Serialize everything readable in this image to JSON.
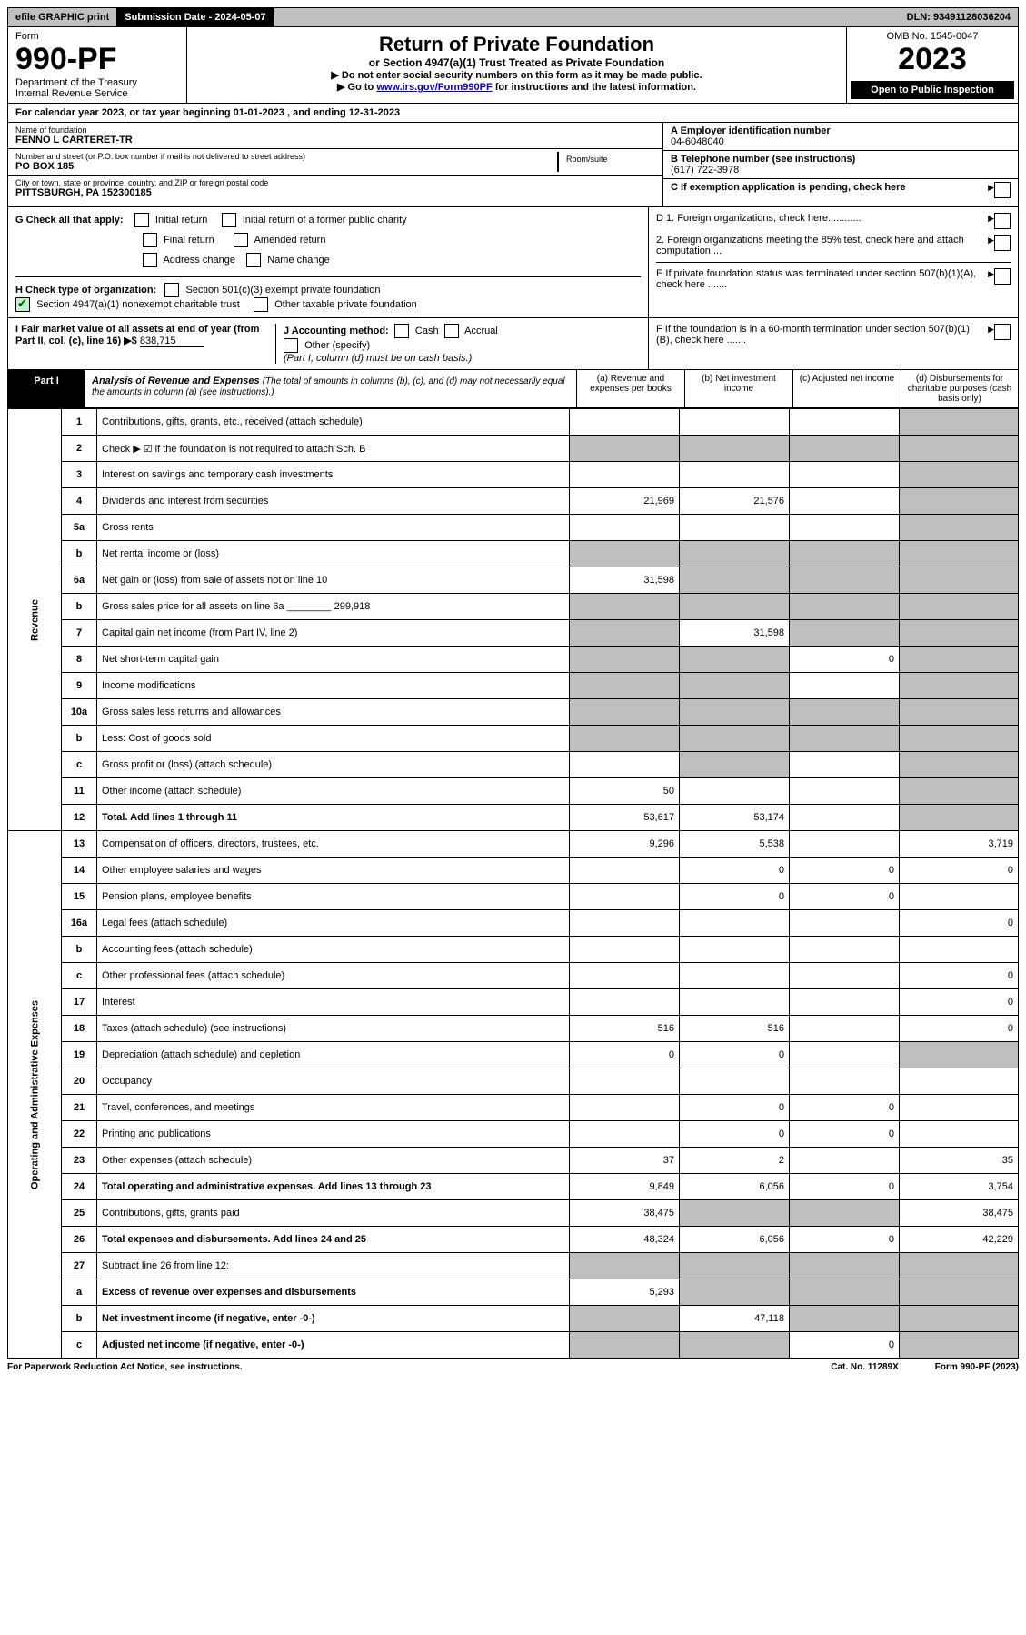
{
  "topbar": {
    "efile": "efile GRAPHIC print",
    "submission": "Submission Date - 2024-05-07",
    "dln": "DLN: 93491128036204"
  },
  "header": {
    "form_word": "Form",
    "form_no": "990-PF",
    "dept": "Department of the Treasury",
    "irs": "Internal Revenue Service",
    "title": "Return of Private Foundation",
    "subtitle": "or Section 4947(a)(1) Trust Treated as Private Foundation",
    "instr1": "▶ Do not enter social security numbers on this form as it may be made public.",
    "instr2_pre": "▶ Go to ",
    "instr2_link": "www.irs.gov/Form990PF",
    "instr2_post": " for instructions and the latest information.",
    "omb": "OMB No. 1545-0047",
    "year": "2023",
    "open": "Open to Public Inspection"
  },
  "cal_year": "For calendar year 2023, or tax year beginning 01-01-2023             , and ending 12-31-2023",
  "org": {
    "name_lbl": "Name of foundation",
    "name": "FENNO L CARTERET-TR",
    "addr_lbl": "Number and street (or P.O. box number if mail is not delivered to street address)",
    "addr": "PO BOX 185",
    "room_lbl": "Room/suite",
    "city_lbl": "City or town, state or province, country, and ZIP or foreign postal code",
    "city": "PITTSBURGH, PA  152300185",
    "a_lbl": "A Employer identification number",
    "a_val": "04-6048040",
    "b_lbl": "B Telephone number (see instructions)",
    "b_val": "(617) 722-3978",
    "c_lbl": "C If exemption application is pending, check here"
  },
  "g": {
    "label": "G Check all that apply:",
    "initial": "Initial return",
    "initial_former": "Initial return of a former public charity",
    "final": "Final return",
    "amended": "Amended return",
    "addr_change": "Address change",
    "name_change": "Name change"
  },
  "h": {
    "label": "H Check type of organization:",
    "opt1": "Section 501(c)(3) exempt private foundation",
    "opt2": "Section 4947(a)(1) nonexempt charitable trust",
    "opt3": "Other taxable private foundation"
  },
  "d": {
    "d1": "D 1. Foreign organizations, check here............",
    "d2": "2. Foreign organizations meeting the 85% test, check here and attach computation ...",
    "e": "E  If private foundation status was terminated under section 507(b)(1)(A), check here .......",
    "f": "F  If the foundation is in a 60-month termination under section 507(b)(1)(B), check here ......."
  },
  "i": {
    "label": "I Fair market value of all assets at end of year (from Part II, col. (c), line 16) ▶$",
    "val": "838,715"
  },
  "j": {
    "label": "J Accounting method:",
    "cash": "Cash",
    "accrual": "Accrual",
    "other": "Other (specify)",
    "note": "(Part I, column (d) must be on cash basis.)"
  },
  "part1": {
    "tab": "Part I",
    "title": "Analysis of Revenue and Expenses",
    "note": "(The total of amounts in columns (b), (c), and (d) may not necessarily equal the amounts in column (a) (see instructions).)",
    "col_a": "(a) Revenue and expenses per books",
    "col_b": "(b) Net investment income",
    "col_c": "(c) Adjusted net income",
    "col_d": "(d) Disbursements for charitable purposes (cash basis only)"
  },
  "side": {
    "revenue": "Revenue",
    "expenses": "Operating and Administrative Expenses"
  },
  "rows": [
    {
      "n": "1",
      "d": "Contributions, gifts, grants, etc., received (attach schedule)",
      "a": "",
      "b": "",
      "c": "",
      "dd": "",
      "greyD": true
    },
    {
      "n": "2",
      "d": "Check ▶ ☑ if the foundation is not required to attach Sch. B",
      "a": "",
      "b": "",
      "c": "",
      "dd": "",
      "greyA": true,
      "greyB": true,
      "greyC": true,
      "greyD": true,
      "bold": false
    },
    {
      "n": "3",
      "d": "Interest on savings and temporary cash investments",
      "a": "",
      "b": "",
      "c": "",
      "dd": "",
      "greyD": true
    },
    {
      "n": "4",
      "d": "Dividends and interest from securities",
      "a": "21,969",
      "b": "21,576",
      "c": "",
      "dd": "",
      "greyD": true
    },
    {
      "n": "5a",
      "d": "Gross rents",
      "a": "",
      "b": "",
      "c": "",
      "dd": "",
      "greyD": true
    },
    {
      "n": "b",
      "d": "Net rental income or (loss)",
      "a": "",
      "b": "",
      "c": "",
      "dd": "",
      "greyA": true,
      "greyB": true,
      "greyC": true,
      "greyD": true
    },
    {
      "n": "6a",
      "d": "Net gain or (loss) from sale of assets not on line 10",
      "a": "31,598",
      "b": "",
      "c": "",
      "dd": "",
      "greyB": true,
      "greyC": true,
      "greyD": true
    },
    {
      "n": "b",
      "d": "Gross sales price for all assets on line 6a ________ 299,918",
      "a": "",
      "b": "",
      "c": "",
      "dd": "",
      "greyA": true,
      "greyB": true,
      "greyC": true,
      "greyD": true
    },
    {
      "n": "7",
      "d": "Capital gain net income (from Part IV, line 2)",
      "a": "",
      "b": "31,598",
      "c": "",
      "dd": "",
      "greyA": true,
      "greyC": true,
      "greyD": true
    },
    {
      "n": "8",
      "d": "Net short-term capital gain",
      "a": "",
      "b": "",
      "c": "0",
      "dd": "",
      "greyA": true,
      "greyB": true,
      "greyD": true
    },
    {
      "n": "9",
      "d": "Income modifications",
      "a": "",
      "b": "",
      "c": "",
      "dd": "",
      "greyA": true,
      "greyB": true,
      "greyD": true
    },
    {
      "n": "10a",
      "d": "Gross sales less returns and allowances",
      "a": "",
      "b": "",
      "c": "",
      "dd": "",
      "greyA": true,
      "greyB": true,
      "greyC": true,
      "greyD": true
    },
    {
      "n": "b",
      "d": "Less: Cost of goods sold",
      "a": "",
      "b": "",
      "c": "",
      "dd": "",
      "greyA": true,
      "greyB": true,
      "greyC": true,
      "greyD": true
    },
    {
      "n": "c",
      "d": "Gross profit or (loss) (attach schedule)",
      "a": "",
      "b": "",
      "c": "",
      "dd": "",
      "greyB": true,
      "greyD": true
    },
    {
      "n": "11",
      "d": "Other income (attach schedule)",
      "a": "50",
      "b": "",
      "c": "",
      "dd": "",
      "greyD": true
    },
    {
      "n": "12",
      "d": "Total. Add lines 1 through 11",
      "a": "53,617",
      "b": "53,174",
      "c": "",
      "dd": "",
      "greyD": true,
      "bold": true
    },
    {
      "n": "13",
      "d": "Compensation of officers, directors, trustees, etc.",
      "a": "9,296",
      "b": "5,538",
      "c": "",
      "dd": "3,719"
    },
    {
      "n": "14",
      "d": "Other employee salaries and wages",
      "a": "",
      "b": "0",
      "c": "0",
      "dd": "0"
    },
    {
      "n": "15",
      "d": "Pension plans, employee benefits",
      "a": "",
      "b": "0",
      "c": "0",
      "dd": ""
    },
    {
      "n": "16a",
      "d": "Legal fees (attach schedule)",
      "a": "",
      "b": "",
      "c": "",
      "dd": "0"
    },
    {
      "n": "b",
      "d": "Accounting fees (attach schedule)",
      "a": "",
      "b": "",
      "c": "",
      "dd": ""
    },
    {
      "n": "c",
      "d": "Other professional fees (attach schedule)",
      "a": "",
      "b": "",
      "c": "",
      "dd": "0"
    },
    {
      "n": "17",
      "d": "Interest",
      "a": "",
      "b": "",
      "c": "",
      "dd": "0"
    },
    {
      "n": "18",
      "d": "Taxes (attach schedule) (see instructions)",
      "a": "516",
      "b": "516",
      "c": "",
      "dd": "0"
    },
    {
      "n": "19",
      "d": "Depreciation (attach schedule) and depletion",
      "a": "0",
      "b": "0",
      "c": "",
      "dd": "",
      "greyD": true
    },
    {
      "n": "20",
      "d": "Occupancy",
      "a": "",
      "b": "",
      "c": "",
      "dd": ""
    },
    {
      "n": "21",
      "d": "Travel, conferences, and meetings",
      "a": "",
      "b": "0",
      "c": "0",
      "dd": ""
    },
    {
      "n": "22",
      "d": "Printing and publications",
      "a": "",
      "b": "0",
      "c": "0",
      "dd": ""
    },
    {
      "n": "23",
      "d": "Other expenses (attach schedule)",
      "a": "37",
      "b": "2",
      "c": "",
      "dd": "35"
    },
    {
      "n": "24",
      "d": "Total operating and administrative expenses. Add lines 13 through 23",
      "a": "9,849",
      "b": "6,056",
      "c": "0",
      "dd": "3,754",
      "bold": true
    },
    {
      "n": "25",
      "d": "Contributions, gifts, grants paid",
      "a": "38,475",
      "b": "",
      "c": "",
      "dd": "38,475",
      "greyB": true,
      "greyC": true
    },
    {
      "n": "26",
      "d": "Total expenses and disbursements. Add lines 24 and 25",
      "a": "48,324",
      "b": "6,056",
      "c": "0",
      "dd": "42,229",
      "bold": true
    },
    {
      "n": "27",
      "d": "Subtract line 26 from line 12:",
      "a": "",
      "b": "",
      "c": "",
      "dd": "",
      "greyA": true,
      "greyB": true,
      "greyC": true,
      "greyD": true
    },
    {
      "n": "a",
      "d": "Excess of revenue over expenses and disbursements",
      "a": "5,293",
      "b": "",
      "c": "",
      "dd": "",
      "greyB": true,
      "greyC": true,
      "greyD": true,
      "bold": true
    },
    {
      "n": "b",
      "d": "Net investment income (if negative, enter -0-)",
      "a": "",
      "b": "47,118",
      "c": "",
      "dd": "",
      "greyA": true,
      "greyC": true,
      "greyD": true,
      "bold": true
    },
    {
      "n": "c",
      "d": "Adjusted net income (if negative, enter -0-)",
      "a": "",
      "b": "",
      "c": "0",
      "dd": "",
      "greyA": true,
      "greyB": true,
      "greyD": true,
      "bold": true
    }
  ],
  "footer": {
    "left": "For Paperwork Reduction Act Notice, see instructions.",
    "mid": "Cat. No. 11289X",
    "right": "Form 990-PF (2023)"
  }
}
